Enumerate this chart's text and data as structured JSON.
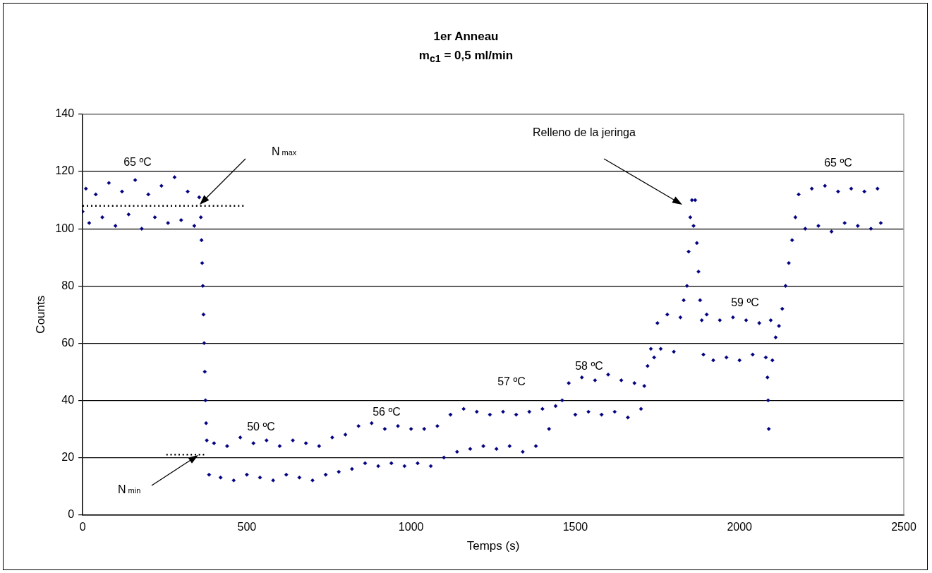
{
  "chart_data": {
    "type": "scatter",
    "title": "1er Anneau",
    "subtitle": "m$_{c1}$ = 0,5 ml/min",
    "xlabel": "Temps (s)",
    "ylabel": "Counts",
    "xlim": [
      0,
      2500
    ],
    "xticks": [
      0,
      500,
      1000,
      1500,
      2000,
      2500
    ],
    "ylim": [
      0,
      140
    ],
    "yticks": [
      0,
      20,
      40,
      60,
      80,
      100,
      120,
      140
    ],
    "grid": "y",
    "legend": false,
    "marker": "diamond",
    "series": [
      {
        "color": "#000080",
        "x": [
          0,
          10,
          20,
          40,
          60,
          80,
          100,
          120,
          140,
          160,
          180,
          200,
          220,
          240,
          260,
          280,
          300,
          320,
          340,
          355,
          360,
          362,
          364,
          366,
          368,
          370,
          372,
          374,
          376,
          378,
          385,
          400,
          420,
          440,
          460,
          480,
          500,
          520,
          540,
          560,
          580,
          600,
          620,
          640,
          660,
          680,
          700,
          720,
          740,
          760,
          780,
          800,
          820,
          840,
          860,
          880,
          900,
          920,
          940,
          960,
          980,
          1000,
          1020,
          1040,
          1060,
          1080,
          1100,
          1120,
          1140,
          1160,
          1180,
          1200,
          1220,
          1240,
          1260,
          1280,
          1300,
          1320,
          1340,
          1360,
          1380,
          1400,
          1420,
          1440,
          1460,
          1480,
          1500,
          1520,
          1540,
          1560,
          1580,
          1600,
          1620,
          1640,
          1660,
          1680,
          1700,
          1710,
          1720,
          1730,
          1740,
          1750,
          1760,
          1780,
          1800,
          1820,
          1830,
          1840,
          1845,
          1850,
          1855,
          1860,
          1865,
          1870,
          1875,
          1880,
          1885,
          1890,
          1900,
          1920,
          1940,
          1960,
          1980,
          2000,
          2020,
          2040,
          2060,
          2080,
          2085,
          2087,
          2089,
          2095,
          2100,
          2110,
          2120,
          2130,
          2140,
          2150,
          2160,
          2170,
          2180,
          2200,
          2220,
          2240,
          2260,
          2280,
          2300,
          2320,
          2340,
          2360,
          2380,
          2400,
          2420,
          2430
        ],
        "values": [
          106,
          114,
          102,
          112,
          104,
          116,
          101,
          113,
          105,
          117,
          100,
          112,
          104,
          115,
          102,
          118,
          103,
          113,
          101,
          111,
          104,
          96,
          88,
          80,
          70,
          60,
          50,
          40,
          32,
          26,
          14,
          25,
          13,
          24,
          12,
          27,
          14,
          25,
          13,
          26,
          12,
          24,
          14,
          26,
          13,
          25,
          12,
          24,
          14,
          27,
          15,
          28,
          16,
          31,
          18,
          32,
          17,
          30,
          18,
          31,
          17,
          30,
          18,
          30,
          17,
          31,
          20,
          35,
          22,
          37,
          23,
          36,
          24,
          35,
          23,
          36,
          24,
          35,
          22,
          36,
          24,
          37,
          30,
          38,
          40,
          46,
          35,
          48,
          36,
          47,
          35,
          49,
          36,
          47,
          34,
          46,
          37,
          45,
          52,
          58,
          55,
          67,
          58,
          70,
          57,
          69,
          75,
          80,
          92,
          104,
          110,
          101,
          110,
          95,
          85,
          75,
          68,
          56,
          70,
          54,
          68,
          55,
          69,
          54,
          68,
          56,
          67,
          55,
          48,
          40,
          30,
          68,
          54,
          62,
          66,
          72,
          80,
          88,
          96,
          104,
          112,
          100,
          114,
          101,
          115,
          99,
          113,
          102,
          114,
          101,
          113,
          100,
          114,
          102
        ]
      },
      {
        "type": "line",
        "color": "#000000",
        "line_style": "dotted",
        "marker": "none",
        "x": [
          0,
          490
        ],
        "values": [
          108,
          108
        ]
      },
      {
        "type": "line",
        "color": "#000000",
        "line_style": "dotted",
        "marker": "none",
        "x": [
          255,
          370
        ],
        "values": [
          21,
          21
        ]
      }
    ],
    "annotations": [
      "65 ºC",
      "N$_{max}$",
      "N$_{min}$",
      "50 ºC",
      "56 ºC",
      "57 ºC",
      "58 ºC",
      "Relleno de la jeringa",
      "59 ºC",
      "65 ºC"
    ]
  }
}
